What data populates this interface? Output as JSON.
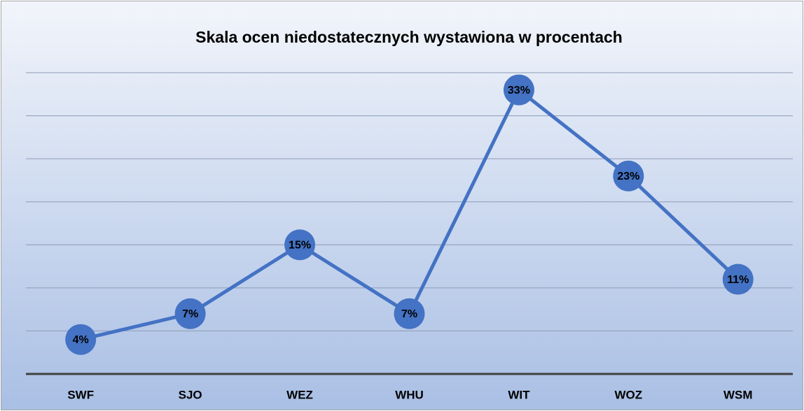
{
  "chart_data": {
    "type": "line",
    "title": "Skala ocen niedostatecznych wystawiona w procentach",
    "categories": [
      "SWF",
      "SJO",
      "WEZ",
      "WHU",
      "WIT",
      "WOZ",
      "WSM"
    ],
    "series": [
      {
        "name": "Skala ocen niedostatecznych",
        "color": "#4472c4",
        "values": [
          4,
          7,
          15,
          7,
          33,
          23,
          11
        ],
        "value_labels": [
          "4%",
          "7%",
          "15%",
          "7%",
          "33%",
          "23%",
          "11%"
        ]
      }
    ],
    "ylim": [
      0,
      35
    ],
    "yticks": [
      0,
      5,
      10,
      15,
      20,
      25,
      30,
      35
    ],
    "grid": true,
    "legend": false
  }
}
